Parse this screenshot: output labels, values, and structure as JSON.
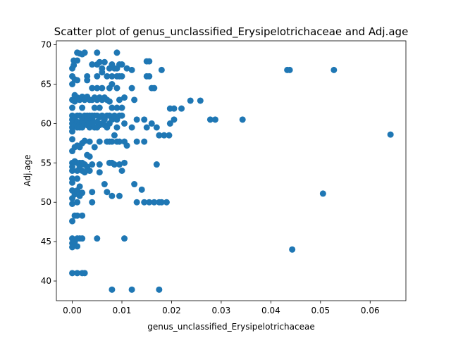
{
  "chart_data": {
    "type": "scatter",
    "title": "Scatter plot of genus_unclassified_Erysipelotrichaceae and Adj.age",
    "xlabel": "genus_unclassified_Erysipelotrichaceae",
    "ylabel": "Adj.age",
    "xlim": [
      -0.0032,
      0.0672
    ],
    "ylim": [
      37.5,
      70.5
    ],
    "xticks": [
      "0.00",
      "0.01",
      "0.02",
      "0.03",
      "0.04",
      "0.05",
      "0.06"
    ],
    "xtick_values": [
      0,
      0.01,
      0.02,
      0.03,
      0.04,
      0.05,
      0.06
    ],
    "yticks": [
      "40",
      "45",
      "50",
      "55",
      "60",
      "65",
      "70"
    ],
    "ytick_values": [
      40,
      45,
      50,
      55,
      60,
      65,
      70
    ],
    "grid": false,
    "marker_color": "#1f77b4",
    "series": [
      {
        "points": [
          [
            0.0,
            67.0
          ],
          [
            0.0,
            66.0
          ],
          [
            0.0,
            65.0
          ],
          [
            0.0,
            63.0
          ],
          [
            0.0,
            62.0
          ],
          [
            0.0,
            61.0
          ],
          [
            0.0,
            60.5
          ],
          [
            0.0,
            60.0
          ],
          [
            0.0,
            59.5
          ],
          [
            0.0,
            59.0
          ],
          [
            0.0,
            58.0
          ],
          [
            0.0,
            56.5
          ],
          [
            0.0,
            55.0
          ],
          [
            0.0,
            54.5
          ],
          [
            0.0,
            54.0
          ],
          [
            0.0,
            53.0
          ],
          [
            0.0,
            52.5
          ],
          [
            0.0,
            51.5
          ],
          [
            0.0,
            50.5
          ],
          [
            0.0,
            49.8
          ],
          [
            0.0,
            47.6
          ],
          [
            0.0,
            45.4
          ],
          [
            0.0,
            44.8
          ],
          [
            0.0,
            44.3
          ],
          [
            0.0,
            41.0
          ],
          [
            0.0003,
            68.0
          ],
          [
            0.0003,
            67.4
          ],
          [
            0.0005,
            65.6
          ],
          [
            0.0005,
            63.6
          ],
          [
            0.0005,
            62.8
          ],
          [
            0.0005,
            60.8
          ],
          [
            0.0005,
            59.8
          ],
          [
            0.0005,
            57.0
          ],
          [
            0.0005,
            55.2
          ],
          [
            0.0005,
            51.0
          ],
          [
            0.0005,
            48.3
          ],
          [
            0.0005,
            45.0
          ],
          [
            0.001,
            69.0
          ],
          [
            0.001,
            68.0
          ],
          [
            0.001,
            65.5
          ],
          [
            0.001,
            63.3
          ],
          [
            0.001,
            61.0
          ],
          [
            0.001,
            60.2
          ],
          [
            0.001,
            59.5
          ],
          [
            0.001,
            57.2
          ],
          [
            0.001,
            55.0
          ],
          [
            0.001,
            54.0
          ],
          [
            0.001,
            53.0
          ],
          [
            0.001,
            51.5
          ],
          [
            0.001,
            50.0
          ],
          [
            0.001,
            48.3
          ],
          [
            0.001,
            45.4
          ],
          [
            0.001,
            44.4
          ],
          [
            0.001,
            41.0
          ],
          [
            0.0015,
            68.9
          ],
          [
            0.0015,
            63.0
          ],
          [
            0.0015,
            61.0
          ],
          [
            0.0015,
            60.0
          ],
          [
            0.0015,
            59.5
          ],
          [
            0.0015,
            57.0
          ],
          [
            0.0015,
            55.0
          ],
          [
            0.0015,
            54.5
          ],
          [
            0.0015,
            52.0
          ],
          [
            0.0015,
            50.8
          ],
          [
            0.0015,
            45.4
          ],
          [
            0.002,
            68.8
          ],
          [
            0.002,
            63.4
          ],
          [
            0.002,
            62.0
          ],
          [
            0.002,
            60.5
          ],
          [
            0.002,
            60.0
          ],
          [
            0.002,
            59.5
          ],
          [
            0.002,
            57.5
          ],
          [
            0.002,
            55.0
          ],
          [
            0.002,
            54.0
          ],
          [
            0.002,
            51.2
          ],
          [
            0.002,
            48.3
          ],
          [
            0.002,
            45.4
          ],
          [
            0.002,
            41.0
          ],
          [
            0.0025,
            69.0
          ],
          [
            0.0025,
            63.0
          ],
          [
            0.0025,
            61.0
          ],
          [
            0.0025,
            60.0
          ],
          [
            0.0025,
            57.8
          ],
          [
            0.0025,
            54.8
          ],
          [
            0.0025,
            53.8
          ],
          [
            0.0025,
            41.0
          ],
          [
            0.003,
            66.0
          ],
          [
            0.003,
            65.5
          ],
          [
            0.003,
            63.4
          ],
          [
            0.003,
            61.0
          ],
          [
            0.003,
            60.5
          ],
          [
            0.003,
            59.8
          ],
          [
            0.003,
            56.0
          ],
          [
            0.003,
            54.5
          ],
          [
            0.0035,
            63.0
          ],
          [
            0.0035,
            61.0
          ],
          [
            0.0035,
            60.0
          ],
          [
            0.0035,
            59.5
          ],
          [
            0.0035,
            57.7
          ],
          [
            0.0035,
            55.8
          ],
          [
            0.0035,
            54.0
          ],
          [
            0.004,
            67.5
          ],
          [
            0.004,
            64.5
          ],
          [
            0.004,
            63.0
          ],
          [
            0.004,
            61.0
          ],
          [
            0.004,
            60.5
          ],
          [
            0.004,
            60.0
          ],
          [
            0.004,
            54.8
          ],
          [
            0.004,
            51.3
          ],
          [
            0.004,
            50.0
          ],
          [
            0.0045,
            63.3
          ],
          [
            0.0045,
            62.0
          ],
          [
            0.0045,
            61.0
          ],
          [
            0.0045,
            59.5
          ],
          [
            0.0045,
            57.0
          ],
          [
            0.005,
            69.0
          ],
          [
            0.005,
            67.5
          ],
          [
            0.005,
            66.0
          ],
          [
            0.005,
            64.5
          ],
          [
            0.005,
            63.0
          ],
          [
            0.005,
            61.0
          ],
          [
            0.005,
            60.2
          ],
          [
            0.005,
            59.5
          ],
          [
            0.005,
            45.4
          ],
          [
            0.0055,
            67.8
          ],
          [
            0.0055,
            63.3
          ],
          [
            0.0055,
            62.0
          ],
          [
            0.0055,
            60.8
          ],
          [
            0.0055,
            59.8
          ],
          [
            0.0055,
            57.7
          ],
          [
            0.0055,
            54.8
          ],
          [
            0.0055,
            53.8
          ],
          [
            0.006,
            67.0
          ],
          [
            0.006,
            66.5
          ],
          [
            0.006,
            64.5
          ],
          [
            0.006,
            63.0
          ],
          [
            0.006,
            61.0
          ],
          [
            0.006,
            60.0
          ],
          [
            0.0065,
            67.8
          ],
          [
            0.0065,
            63.3
          ],
          [
            0.0065,
            60.5
          ],
          [
            0.0065,
            59.8
          ],
          [
            0.0065,
            52.3
          ],
          [
            0.007,
            66.0
          ],
          [
            0.007,
            63.0
          ],
          [
            0.007,
            61.0
          ],
          [
            0.007,
            59.5
          ],
          [
            0.007,
            57.7
          ],
          [
            0.007,
            51.3
          ],
          [
            0.0075,
            67.0
          ],
          [
            0.0075,
            64.5
          ],
          [
            0.0075,
            62.8
          ],
          [
            0.0075,
            61.0
          ],
          [
            0.0075,
            60.0
          ],
          [
            0.0075,
            57.7
          ],
          [
            0.0075,
            55.0
          ],
          [
            0.008,
            67.5
          ],
          [
            0.008,
            66.0
          ],
          [
            0.008,
            65.0
          ],
          [
            0.008,
            62.0
          ],
          [
            0.008,
            60.5
          ],
          [
            0.008,
            57.7
          ],
          [
            0.008,
            55.0
          ],
          [
            0.008,
            50.8
          ],
          [
            0.008,
            38.9
          ],
          [
            0.0085,
            67.0
          ],
          [
            0.0085,
            61.0
          ],
          [
            0.0085,
            58.5
          ],
          [
            0.0085,
            54.8
          ],
          [
            0.009,
            69.0
          ],
          [
            0.009,
            67.0
          ],
          [
            0.009,
            66.0
          ],
          [
            0.009,
            64.5
          ],
          [
            0.009,
            62.0
          ],
          [
            0.009,
            60.5
          ],
          [
            0.009,
            59.5
          ],
          [
            0.009,
            57.7
          ],
          [
            0.0095,
            67.5
          ],
          [
            0.0095,
            66.0
          ],
          [
            0.0095,
            63.0
          ],
          [
            0.0095,
            61.0
          ],
          [
            0.0095,
            57.7
          ],
          [
            0.0095,
            54.8
          ],
          [
            0.0095,
            50.8
          ],
          [
            0.01,
            67.5
          ],
          [
            0.01,
            66.0
          ],
          [
            0.01,
            62.0
          ],
          [
            0.01,
            61.0
          ],
          [
            0.01,
            54.0
          ],
          [
            0.0105,
            63.3
          ],
          [
            0.0105,
            60.0
          ],
          [
            0.0105,
            57.7
          ],
          [
            0.0105,
            55.0
          ],
          [
            0.0105,
            45.4
          ],
          [
            0.011,
            67.0
          ],
          [
            0.011,
            57.2
          ],
          [
            0.012,
            66.8
          ],
          [
            0.012,
            64.5
          ],
          [
            0.012,
            59.5
          ],
          [
            0.012,
            38.9
          ],
          [
            0.0125,
            63.0
          ],
          [
            0.0125,
            52.3
          ],
          [
            0.013,
            60.5
          ],
          [
            0.013,
            57.7
          ],
          [
            0.013,
            50.0
          ],
          [
            0.014,
            51.6
          ],
          [
            0.0145,
            60.5
          ],
          [
            0.0145,
            57.7
          ],
          [
            0.0145,
            50.0
          ],
          [
            0.015,
            67.9
          ],
          [
            0.015,
            66.0
          ],
          [
            0.015,
            59.5
          ],
          [
            0.0155,
            67.9
          ],
          [
            0.0155,
            66.0
          ],
          [
            0.0155,
            50.0
          ],
          [
            0.016,
            64.5
          ],
          [
            0.016,
            60.0
          ],
          [
            0.0165,
            64.5
          ],
          [
            0.0165,
            50.0
          ],
          [
            0.017,
            59.5
          ],
          [
            0.017,
            54.8
          ],
          [
            0.0175,
            58.5
          ],
          [
            0.0175,
            50.0
          ],
          [
            0.0175,
            38.9
          ],
          [
            0.018,
            66.8
          ],
          [
            0.018,
            50.0
          ],
          [
            0.0185,
            58.5
          ],
          [
            0.019,
            50.0
          ],
          [
            0.0195,
            58.5
          ],
          [
            0.0197,
            61.9
          ],
          [
            0.0197,
            60.0
          ],
          [
            0.0205,
            61.9
          ],
          [
            0.0205,
            60.5
          ],
          [
            0.022,
            61.9
          ],
          [
            0.0238,
            62.9
          ],
          [
            0.0258,
            62.9
          ],
          [
            0.0278,
            60.5
          ],
          [
            0.0288,
            60.5
          ],
          [
            0.0343,
            60.5
          ],
          [
            0.0433,
            66.8
          ],
          [
            0.0438,
            66.8
          ],
          [
            0.0443,
            44.0
          ],
          [
            0.0505,
            51.1
          ],
          [
            0.0527,
            66.8
          ],
          [
            0.0641,
            58.6
          ]
        ]
      }
    ]
  }
}
